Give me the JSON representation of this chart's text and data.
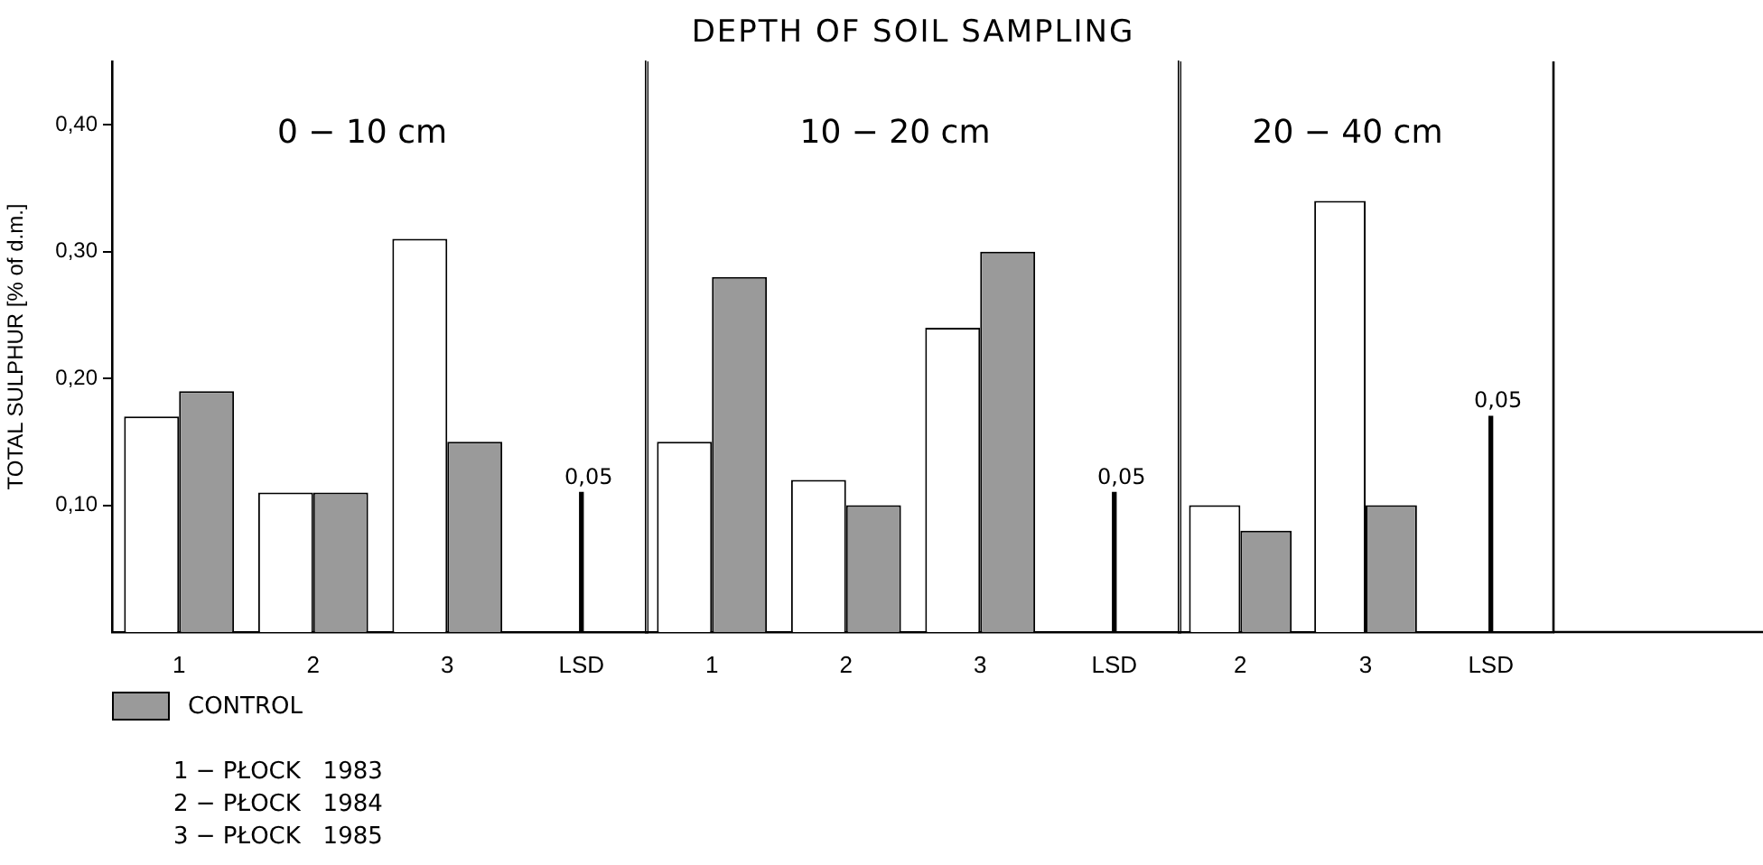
{
  "chart_data": [
    {
      "type": "bar",
      "subtitle": "0 − 10 cm",
      "ylabel": "TOTAL SULPHUR [% of d.m.]",
      "categories": [
        "1",
        "2",
        "3",
        "LSD"
      ],
      "series": [
        {
          "color": "#ffffff",
          "values": [
            0.17,
            0.11,
            0.31,
            null
          ]
        },
        {
          "name": "CONTROL",
          "color": "#9a9a9a",
          "values": [
            0.19,
            0.11,
            0.15,
            null
          ]
        },
        {
          "color": "#000000",
          "values": [
            null,
            null,
            null,
            0.11
          ]
        }
      ],
      "ylim": [
        0,
        0.45
      ],
      "yticks": [
        {
          "value": 0.1,
          "label": "0,10"
        },
        {
          "value": 0.2,
          "label": "0,20"
        },
        {
          "value": 0.3,
          "label": "0,30"
        },
        {
          "value": 0.4,
          "label": "0,40"
        }
      ],
      "legend": "bottom left",
      "annotations": [
        {
          "text": "0,05",
          "x": "LSD",
          "y": 0.11
        },
        "1 − PŁOCK   1983",
        "2 − PŁOCK   1984",
        "3 − PŁOCK   1985"
      ]
    },
    {
      "type": "bar",
      "title": "DEPTH OF SOIL SAMPLING",
      "subtitle": "10 − 20 cm",
      "categories": [
        "1",
        "2",
        "3",
        "LSD"
      ],
      "series": [
        {
          "color": "#ffffff",
          "values": [
            0.15,
            0.12,
            0.24,
            null
          ]
        },
        {
          "color": "#9a9a9a",
          "values": [
            0.28,
            0.1,
            0.3,
            null
          ]
        },
        {
          "color": "#000000",
          "values": [
            null,
            null,
            null,
            0.11
          ]
        }
      ],
      "ylim": [
        0,
        0.45
      ],
      "tick_labels": "x",
      "annotations": [
        {
          "text": "0,05",
          "x": "LSD",
          "y": 0.11
        }
      ]
    },
    {
      "type": "bar",
      "subtitle": "20 − 40 cm",
      "categories": [
        "2",
        "3",
        "LSD"
      ],
      "series": [
        {
          "color": "#ffffff",
          "values": [
            0.1,
            0.34,
            null
          ]
        },
        {
          "color": "#9a9a9a",
          "values": [
            0.08,
            0.1,
            null
          ]
        },
        {
          "color": "#000000",
          "values": [
            null,
            null,
            0.17
          ]
        }
      ],
      "ylim": [
        0,
        0.45
      ],
      "tick_labels": "x",
      "annotations": [
        {
          "text": "0,05",
          "x": "LSD",
          "y": 0.17
        }
      ]
    }
  ]
}
